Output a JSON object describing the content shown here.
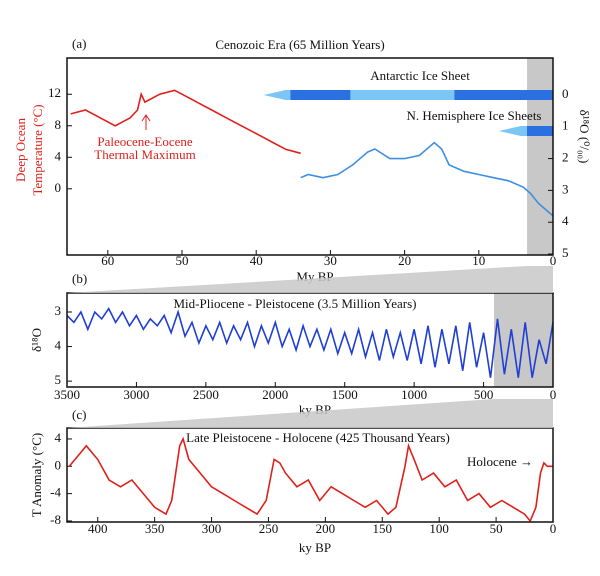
{
  "chart_data": [
    {
      "type": "line",
      "label": "(a)",
      "title": "Cenozoic Era (65 Million Years)",
      "xlabel": "My BP",
      "ylabel": [
        "Deep Ocean",
        "Temperature (°C)"
      ],
      "y2label": "δ¹⁸O (⁰/₀₀)",
      "xlim": [
        65.5,
        0
      ],
      "xticks": [
        60,
        50,
        40,
        30,
        20,
        10,
        0
      ],
      "ylim": [
        -8.4,
        16.6
      ],
      "yticks": [
        0,
        4,
        8,
        12
      ],
      "y2lim": [
        5.03,
        -1.16
      ],
      "y2ticks": [
        0,
        1,
        2,
        3,
        4,
        5
      ],
      "y_color": "#e0201b",
      "y2_color": "#1f3fd6",
      "highlight": [
        3.5,
        0
      ],
      "series": [
        {
          "color": "#e0201b",
          "x": [
            65,
            63,
            61,
            59,
            57,
            56,
            55.5,
            55,
            53,
            51,
            50,
            48,
            46,
            44,
            42,
            40,
            38,
            36,
            34
          ],
          "values": [
            9.5,
            10,
            9,
            8,
            9,
            10,
            12,
            11,
            12,
            12.5,
            12,
            11,
            10,
            9,
            8,
            7,
            6,
            5,
            4.5
          ]
        },
        {
          "color": "#3d8fe0",
          "axis": "y2",
          "x": [
            34,
            33,
            31,
            29,
            27,
            25,
            24,
            22,
            20,
            18,
            16,
            15,
            14,
            12,
            10,
            8,
            6,
            4,
            3,
            2,
            1,
            0
          ],
          "values": [
            2.6,
            2.5,
            2.6,
            2.5,
            2.2,
            1.8,
            1.7,
            2.0,
            2.0,
            1.9,
            1.5,
            1.7,
            2.2,
            2.4,
            2.5,
            2.6,
            2.7,
            2.9,
            3.1,
            3.4,
            3.6,
            3.8
          ]
        }
      ],
      "ice_sheets": [
        {
          "name": "Antarctic Ice Sheet",
          "segments": [
            {
              "from": 39,
              "to": 35.4,
              "color": "#7cc6f5"
            },
            {
              "from": 35.4,
              "to": 27.3,
              "color": "#2a70e0"
            },
            {
              "from": 27.3,
              "to": 13.3,
              "color": "#7cc6f5"
            },
            {
              "from": 13.3,
              "to": 0,
              "color": "#2a70e0"
            }
          ]
        },
        {
          "name": "N. Hemisphere Ice Sheets",
          "segments": [
            {
              "from": 7.3,
              "to": 3.5,
              "color": "#7cc6f5"
            },
            {
              "from": 3.5,
              "to": 0,
              "color": "#2a70e0"
            }
          ]
        }
      ],
      "annotations": [
        {
          "text": [
            "Paleocene-Eocene",
            "Thermal Maximum"
          ],
          "color": "#e0201b"
        }
      ]
    },
    {
      "type": "line",
      "label": "(b)",
      "title": "Mid-Pliocene - Pleistocene (3.5 Million Years)",
      "xlabel": "ky BP",
      "ylabel": "δ¹⁸O",
      "xlim": [
        3500,
        0
      ],
      "xticks": [
        3500,
        3000,
        2500,
        2000,
        1500,
        1000,
        500,
        0
      ],
      "ylim": [
        5.17,
        2.45
      ],
      "yticks": [
        3,
        4,
        5
      ],
      "highlight": [
        425,
        0
      ],
      "series": [
        {
          "color": "#1f3fd6",
          "x": [
            3500,
            3450,
            3400,
            3350,
            3300,
            3250,
            3200,
            3150,
            3100,
            3050,
            3000,
            2950,
            2900,
            2850,
            2800,
            2750,
            2700,
            2650,
            2600,
            2550,
            2500,
            2450,
            2400,
            2350,
            2300,
            2250,
            2200,
            2150,
            2100,
            2050,
            2000,
            1950,
            1900,
            1850,
            1800,
            1750,
            1700,
            1650,
            1600,
            1550,
            1500,
            1450,
            1400,
            1350,
            1300,
            1250,
            1200,
            1150,
            1100,
            1050,
            1000,
            950,
            900,
            850,
            800,
            750,
            700,
            650,
            600,
            550,
            500,
            450,
            400,
            350,
            300,
            250,
            200,
            150,
            100,
            50,
            0
          ],
          "values": [
            3.1,
            3.3,
            3.0,
            3.5,
            3.0,
            3.2,
            2.9,
            3.3,
            3.0,
            3.4,
            3.1,
            3.5,
            3.2,
            3.4,
            3.1,
            3.6,
            3.0,
            3.7,
            3.3,
            3.9,
            3.4,
            3.8,
            3.3,
            3.9,
            3.4,
            3.8,
            3.3,
            4.0,
            3.4,
            3.9,
            3.3,
            4.0,
            3.5,
            4.1,
            3.4,
            4.0,
            3.5,
            4.1,
            3.5,
            4.2,
            3.6,
            4.2,
            3.5,
            4.3,
            3.6,
            4.4,
            3.5,
            4.3,
            3.6,
            4.4,
            3.5,
            4.5,
            3.4,
            4.6,
            3.5,
            4.5,
            3.4,
            4.7,
            3.3,
            4.6,
            3.6,
            4.9,
            3.2,
            4.8,
            3.5,
            4.9,
            3.3,
            4.9,
            3.8,
            4.5,
            3.3
          ]
        }
      ]
    },
    {
      "type": "line",
      "label": "(c)",
      "title": "Late Pleistocene - Holocene (425 Thousand Years)",
      "xlabel": "ky BP",
      "ylabel": "T Anomaly (°C)",
      "xlim": [
        427,
        0
      ],
      "xticks": [
        400,
        350,
        300,
        250,
        200,
        150,
        100,
        50,
        0
      ],
      "ylim": [
        -8.15,
        5.6
      ],
      "yticks": [
        -8,
        -4,
        0,
        4
      ],
      "series": [
        {
          "color": "#e0201b",
          "x": [
            425,
            415,
            410,
            400,
            390,
            380,
            370,
            360,
            350,
            340,
            335,
            328,
            325,
            320,
            310,
            300,
            290,
            280,
            270,
            260,
            252,
            245,
            240,
            235,
            225,
            215,
            205,
            195,
            185,
            175,
            165,
            155,
            145,
            138,
            130,
            127,
            122,
            115,
            105,
            95,
            85,
            75,
            65,
            55,
            45,
            35,
            25,
            20,
            15,
            11,
            8,
            5,
            0
          ],
          "values": [
            0,
            2,
            3,
            1,
            -2,
            -3,
            -2,
            -4,
            -6,
            -7,
            -5,
            3,
            4,
            1,
            -1,
            -3,
            -4,
            -5,
            -6,
            -7,
            -5,
            1,
            0.5,
            -1,
            -3,
            -2,
            -5,
            -3,
            -4,
            -5,
            -6,
            -5,
            -7,
            -6,
            0,
            3,
            1,
            -2,
            -1,
            -3,
            -2,
            -5,
            -4,
            -6,
            -5,
            -6,
            -7,
            -8,
            -6,
            -1,
            0.5,
            0,
            0
          ]
        }
      ],
      "annotations": [
        {
          "text": "Holocene →",
          "color": "#111"
        }
      ]
    }
  ]
}
